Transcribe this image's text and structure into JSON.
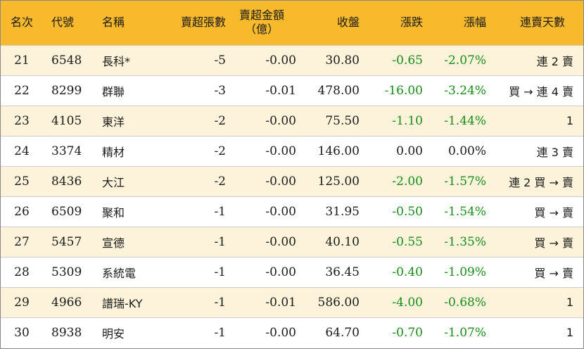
{
  "headers": {
    "rank": "名次",
    "code": "代號",
    "name": "名稱",
    "net_shares": "賣超張數",
    "net_amount_line1": "賣超金額",
    "net_amount_line2": "（億）",
    "close": "收盤",
    "change": "漲跌",
    "change_pct": "漲幅",
    "streak": "連賣天數"
  },
  "colors": {
    "header_bg": "#f9b92d",
    "row_odd_bg": "#fdf3da",
    "row_even_bg": "#ffffff",
    "negative": "#1a8a1a",
    "text": "#1a1a1a"
  },
  "rows": [
    {
      "rank": "21",
      "code": "6548",
      "name": "長科*",
      "net_shares": "-5",
      "net_amount": "-0.00",
      "close": "30.80",
      "change": "-0.65",
      "change_pct": "-2.07%",
      "streak": "連 2 賣"
    },
    {
      "rank": "22",
      "code": "8299",
      "name": "群聯",
      "net_shares": "-3",
      "net_amount": "-0.01",
      "close": "478.00",
      "change": "-16.00",
      "change_pct": "-3.24%",
      "streak": "買 → 連 4 賣"
    },
    {
      "rank": "23",
      "code": "4105",
      "name": "東洋",
      "net_shares": "-2",
      "net_amount": "-0.00",
      "close": "75.50",
      "change": "-1.10",
      "change_pct": "-1.44%",
      "streak": "1"
    },
    {
      "rank": "24",
      "code": "3374",
      "name": "精材",
      "net_shares": "-2",
      "net_amount": "-0.00",
      "close": "146.00",
      "change": "0.00",
      "change_pct": "0.00%",
      "streak": "連 3 賣"
    },
    {
      "rank": "25",
      "code": "8436",
      "name": "大江",
      "net_shares": "-2",
      "net_amount": "-0.00",
      "close": "125.00",
      "change": "-2.00",
      "change_pct": "-1.57%",
      "streak": "連 2 買 → 賣"
    },
    {
      "rank": "26",
      "code": "6509",
      "name": "聚和",
      "net_shares": "-1",
      "net_amount": "-0.00",
      "close": "31.95",
      "change": "-0.50",
      "change_pct": "-1.54%",
      "streak": "買 → 賣"
    },
    {
      "rank": "27",
      "code": "5457",
      "name": "宣德",
      "net_shares": "-1",
      "net_amount": "-0.00",
      "close": "40.10",
      "change": "-0.55",
      "change_pct": "-1.35%",
      "streak": "買 → 賣"
    },
    {
      "rank": "28",
      "code": "5309",
      "name": "系統電",
      "net_shares": "-1",
      "net_amount": "-0.00",
      "close": "36.45",
      "change": "-0.40",
      "change_pct": "-1.09%",
      "streak": "買 → 賣"
    },
    {
      "rank": "29",
      "code": "4966",
      "name": "譜瑞-KY",
      "net_shares": "-1",
      "net_amount": "-0.01",
      "close": "586.00",
      "change": "-4.00",
      "change_pct": "-0.68%",
      "streak": "1"
    },
    {
      "rank": "30",
      "code": "8938",
      "name": "明安",
      "net_shares": "-1",
      "net_amount": "-0.00",
      "close": "64.70",
      "change": "-0.70",
      "change_pct": "-1.07%",
      "streak": "1"
    }
  ]
}
